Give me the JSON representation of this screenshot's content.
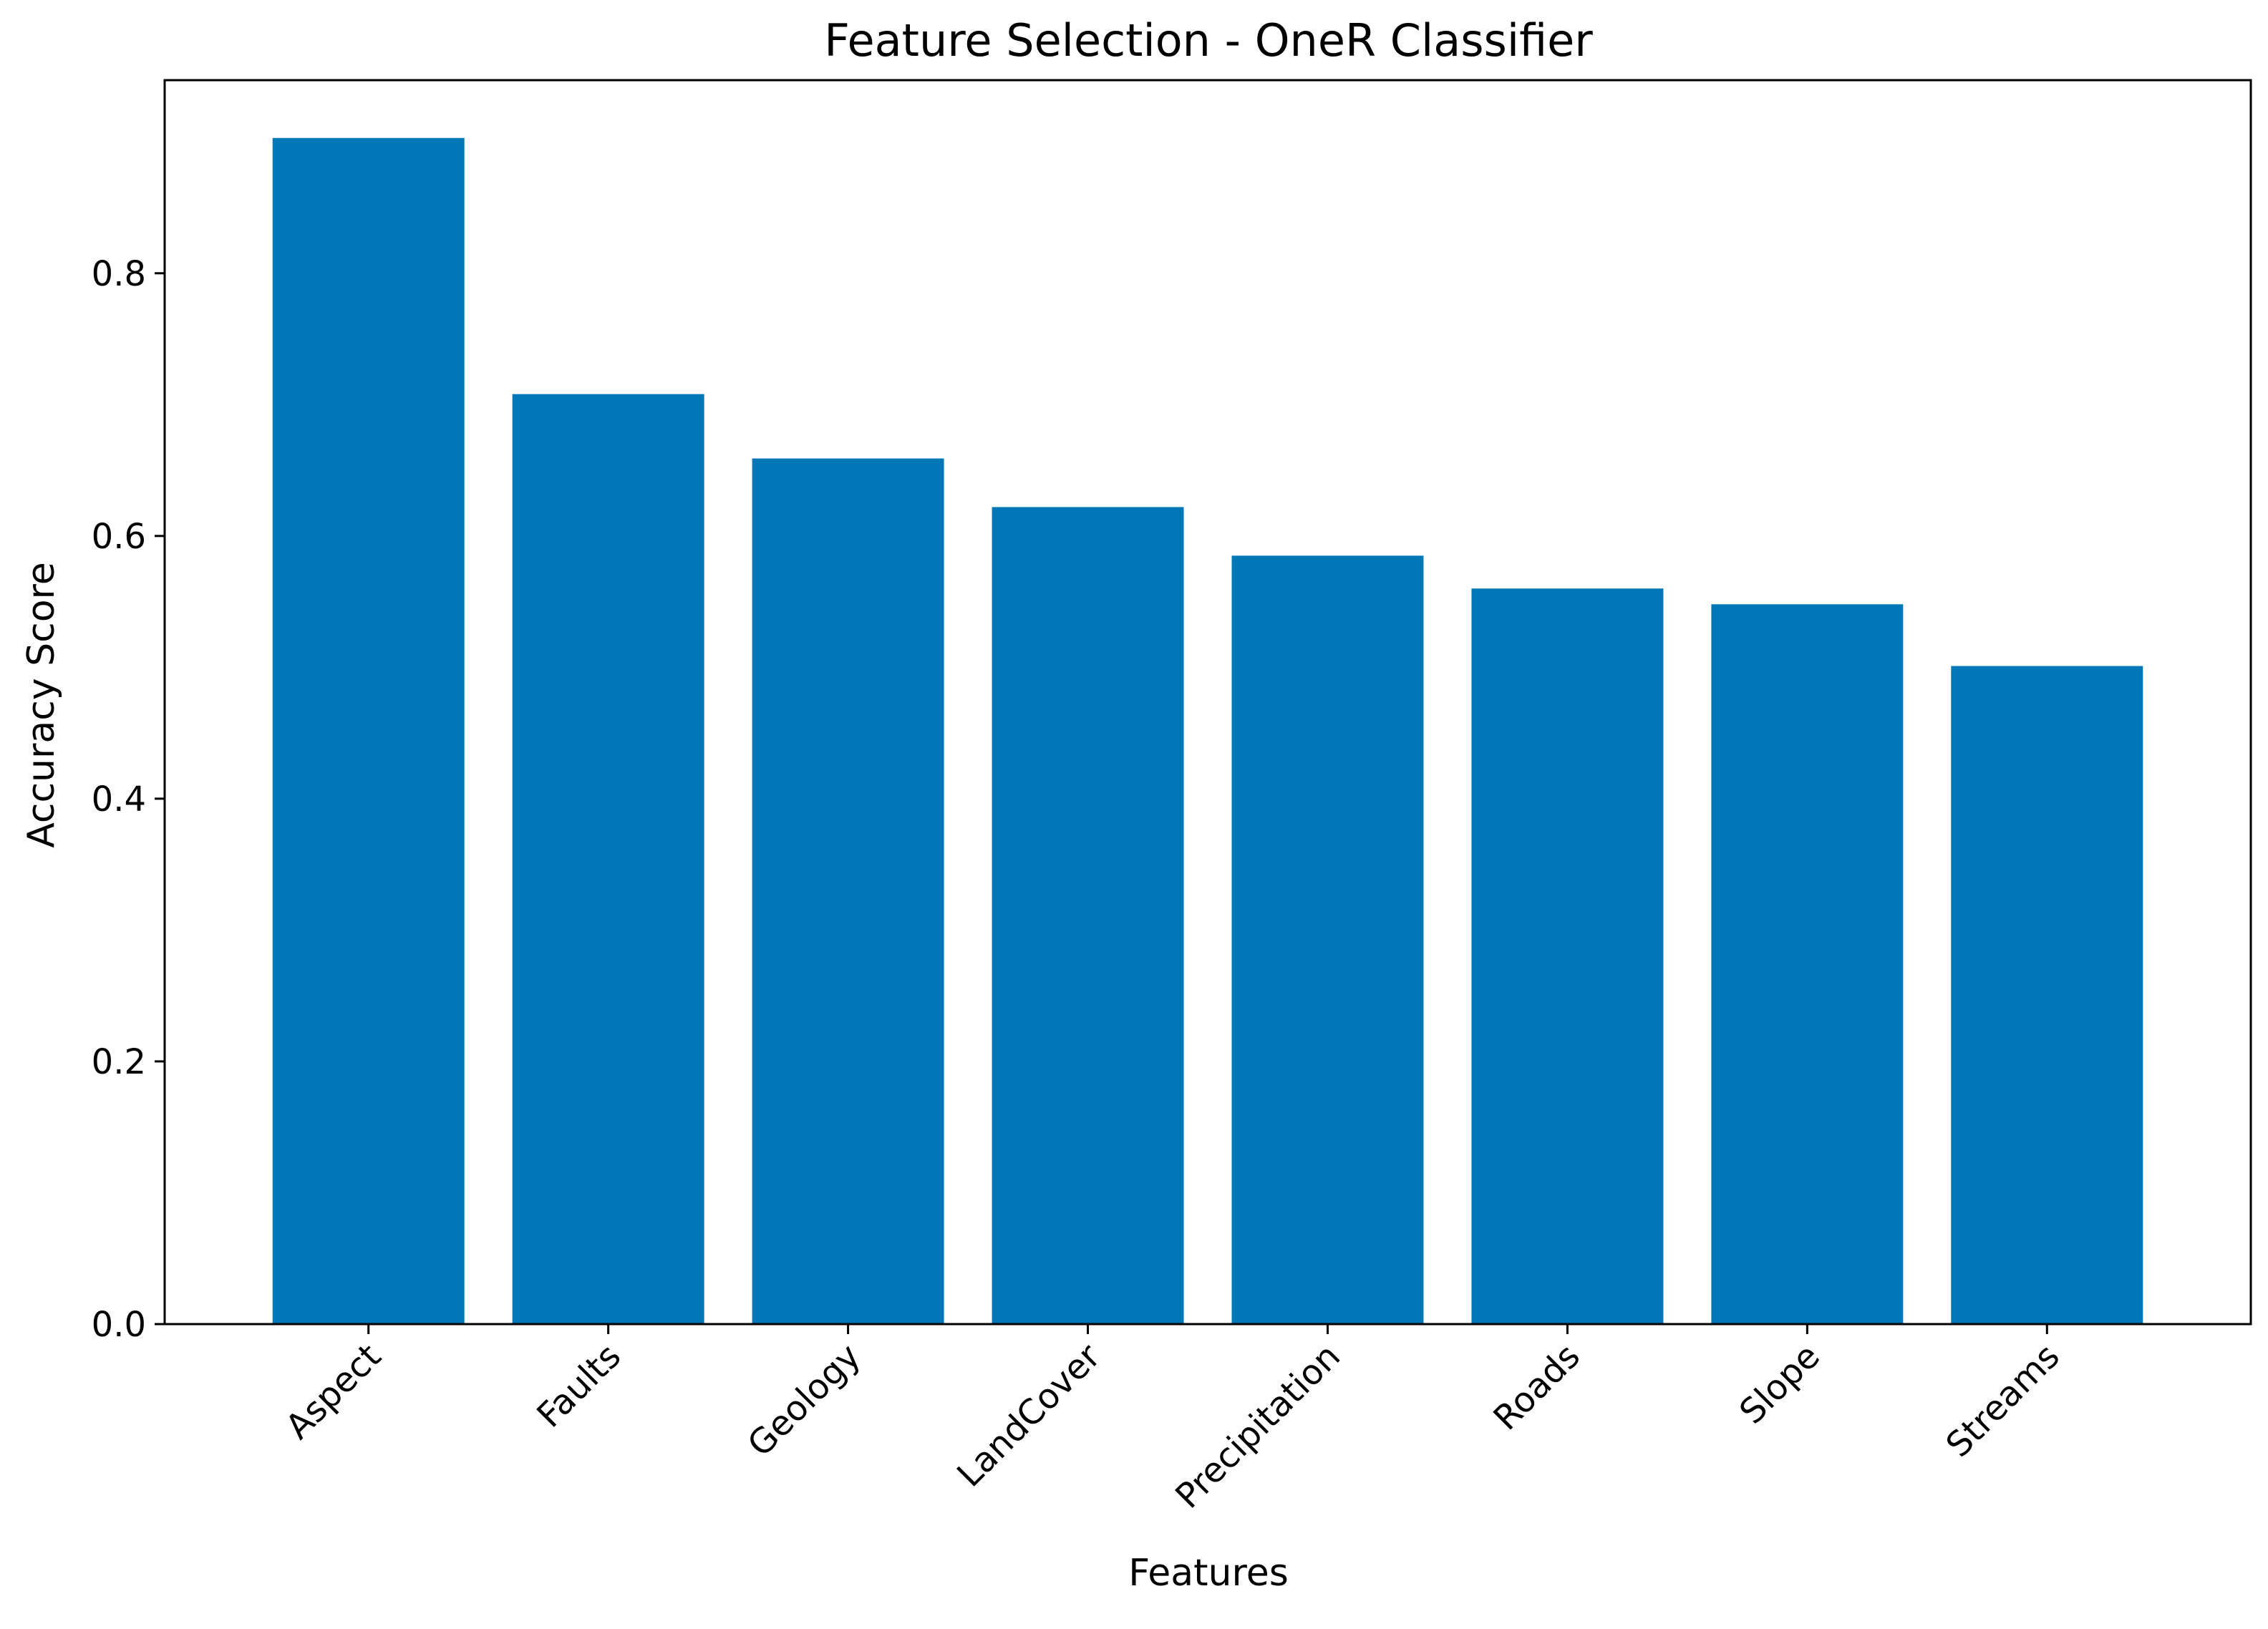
{
  "chart_data": {
    "type": "bar",
    "title": "Feature Selection - OneR Classifier",
    "xlabel": "Features",
    "ylabel": "Accuracy Score",
    "categories": [
      "Aspect",
      "Faults",
      "Geology",
      "LandCover",
      "Precipitation",
      "Roads",
      "Slope",
      "Streams"
    ],
    "values": [
      0.903,
      0.708,
      0.659,
      0.622,
      0.585,
      0.56,
      0.548,
      0.501
    ],
    "ylim": [
      0,
      0.947
    ],
    "yticks": [
      0.0,
      0.2,
      0.4,
      0.6,
      0.8
    ],
    "ytick_labels": [
      "0.0",
      "0.2",
      "0.4",
      "0.6",
      "0.8"
    ],
    "bar_color": "#0077b6",
    "grid": false,
    "legend": "none"
  }
}
